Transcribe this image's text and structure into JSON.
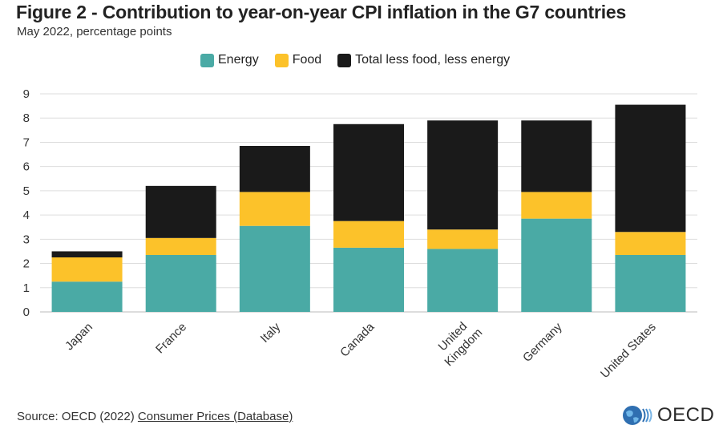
{
  "title": "Figure 2 - Contribution to year-on-year CPI inflation in the G7 countries",
  "subtitle": "May 2022, percentage points",
  "source": {
    "prefix": "Source: OECD (2022) ",
    "link_text": "Consumer Prices (Database)"
  },
  "logo": {
    "text": "OECD"
  },
  "colors": {
    "energy": "#4aaaa5",
    "food": "#fcc22a",
    "core": "#1a1a1a",
    "grid": "#dddddd",
    "axis": "#bbbbbb"
  },
  "chart_data": {
    "type": "bar",
    "stacked": true,
    "title": "Figure 2 - Contribution to year-on-year CPI inflation in the G7 countries",
    "subtitle": "May 2022, percentage points",
    "categories": [
      "Japan",
      "France",
      "Italy",
      "Canada",
      "United Kingdom",
      "Germany",
      "United States"
    ],
    "category_labels": [
      [
        "Japan"
      ],
      [
        "France"
      ],
      [
        "Italy"
      ],
      [
        "Canada"
      ],
      [
        "United",
        "Kingdom"
      ],
      [
        "Germany"
      ],
      [
        "United States"
      ]
    ],
    "series": [
      {
        "name": "Energy",
        "key": "energy",
        "values": [
          1.25,
          2.35,
          3.55,
          2.65,
          2.6,
          3.85,
          2.35
        ]
      },
      {
        "name": "Food",
        "key": "food",
        "values": [
          1.0,
          0.7,
          1.4,
          1.1,
          0.8,
          1.1,
          0.95
        ]
      },
      {
        "name": "Total less food, less energy",
        "key": "core",
        "values": [
          0.25,
          2.15,
          1.9,
          4.0,
          4.5,
          2.95,
          5.25
        ]
      }
    ],
    "ylim": [
      0,
      9
    ],
    "yticks": [
      0,
      1,
      2,
      3,
      4,
      5,
      6,
      7,
      8,
      9
    ],
    "xlabel": "",
    "ylabel": "",
    "legend_position": "top"
  }
}
